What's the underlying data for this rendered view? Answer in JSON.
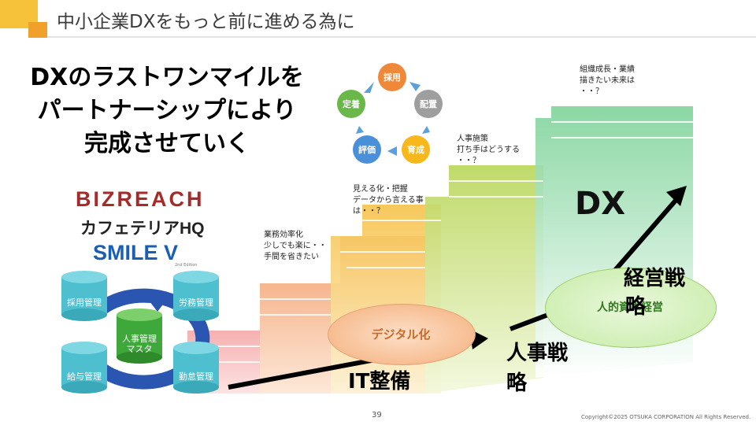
{
  "header": {
    "title": "中小企業DXをもっと前に進める為に"
  },
  "headline": [
    "DXのラストワンマイルを",
    "パートナーシップにより",
    "完成させていく"
  ],
  "logos": {
    "bizreach": "BIZREACH",
    "cafeteria": "カフェテリアHQ",
    "smile": "SMILE V",
    "smile_sub": "2nd Edition"
  },
  "cycle": [
    "採用",
    "配置",
    "育成",
    "評価",
    "定着"
  ],
  "captions": {
    "step1": [
      "業務効率化",
      "少しでも楽に・・",
      "手間を省きたい"
    ],
    "step2": [
      "見える化・把握",
      "データから言える事",
      "は・・？"
    ],
    "step3": [
      "人事施策",
      "打ち手はどうする",
      "・・？"
    ],
    "step4": [
      "組織成長・業績",
      "描きたい未来は",
      "・・？"
    ]
  },
  "hr_system": {
    "center": [
      "人事管理",
      "マスタ"
    ],
    "modules": [
      "採用管理",
      "労務管理",
      "給与管理",
      "勤怠管理"
    ]
  },
  "labels": {
    "dx": "DX",
    "digital": "デジタル化",
    "it": "IT整備",
    "jinji": [
      "人事戦",
      "略"
    ],
    "keiei": [
      "経営戦",
      "略"
    ],
    "jinteki": "人的資本経営"
  },
  "footer": {
    "page": "39",
    "copyright": "Copyright©2025 OTSUKA CORPORATION All Rights Reserved."
  },
  "colors": {
    "accent": "#f0a12a",
    "cylinder": "#4dbfcf",
    "cycle_orange": "#f0883a",
    "cycle_gray": "#9e9e9e",
    "cycle_yellow": "#f6b81c",
    "cycle_blue": "#4a90d9",
    "cycle_green": "#6ab84a"
  }
}
